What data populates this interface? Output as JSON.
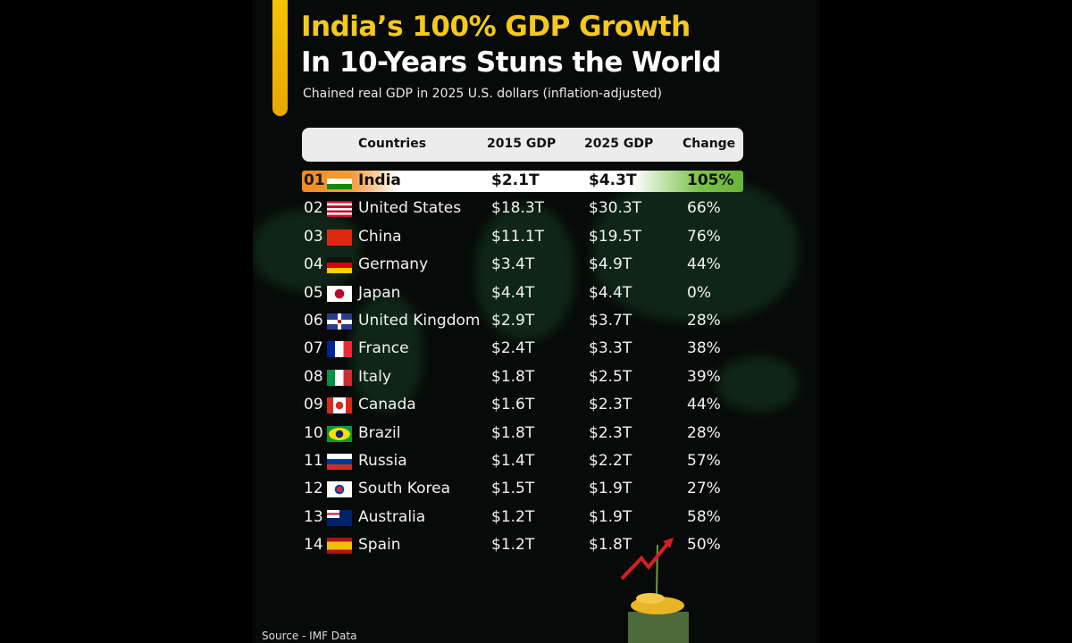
{
  "title_line1": "India’s 100% GDP Growth",
  "title_line2": "In 10-Years Stuns the World",
  "subtitle": "Chained real GDP in 2025 U.S. dollars (inflation-adjusted)",
  "source": "Source - IMF Data",
  "colors": {
    "title_yellow": "#f5c91c",
    "background": "#070a08",
    "header_bg": "#ececec"
  },
  "chart_data": {
    "type": "table",
    "columns": [
      "Countries",
      "2015 GDP",
      "2025 GDP",
      "Change"
    ],
    "rows": [
      {
        "rank": "01",
        "flag": "india-flag",
        "country": "India",
        "gdp2015": "$2.1T",
        "gdp2025": "$4.3T",
        "change": "105%",
        "highlight": true
      },
      {
        "rank": "02",
        "flag": "usa-flag",
        "country": "United States",
        "gdp2015": "$18.3T",
        "gdp2025": "$30.3T",
        "change": "66%"
      },
      {
        "rank": "03",
        "flag": "china-flag",
        "country": "China",
        "gdp2015": "$11.1T",
        "gdp2025": "$19.5T",
        "change": "76%"
      },
      {
        "rank": "04",
        "flag": "germany-flag",
        "country": "Germany",
        "gdp2015": "$3.4T",
        "gdp2025": "$4.9T",
        "change": "44%"
      },
      {
        "rank": "05",
        "flag": "japan-flag",
        "country": "Japan",
        "gdp2015": "$4.4T",
        "gdp2025": "$4.4T",
        "change": "0%"
      },
      {
        "rank": "06",
        "flag": "uk-flag",
        "country": "United Kingdom",
        "gdp2015": "$2.9T",
        "gdp2025": "$3.7T",
        "change": "28%"
      },
      {
        "rank": "07",
        "flag": "france-flag",
        "country": "France",
        "gdp2015": "$2.4T",
        "gdp2025": "$3.3T",
        "change": "38%"
      },
      {
        "rank": "08",
        "flag": "italy-flag",
        "country": "Italy",
        "gdp2015": "$1.8T",
        "gdp2025": "$2.5T",
        "change": "39%"
      },
      {
        "rank": "09",
        "flag": "canada-flag",
        "country": "Canada",
        "gdp2015": "$1.6T",
        "gdp2025": "$2.3T",
        "change": "44%"
      },
      {
        "rank": "10",
        "flag": "brazil-flag",
        "country": "Brazil",
        "gdp2015": "$1.8T",
        "gdp2025": "$2.3T",
        "change": "28%"
      },
      {
        "rank": "11",
        "flag": "russia-flag",
        "country": "Russia",
        "gdp2015": "$1.4T",
        "gdp2025": "$2.2T",
        "change": "57%"
      },
      {
        "rank": "12",
        "flag": "south-korea-flag",
        "country": "South Korea",
        "gdp2015": "$1.5T",
        "gdp2025": "$1.9T",
        "change": "27%"
      },
      {
        "rank": "13",
        "flag": "australia-flag",
        "country": "Australia",
        "gdp2015": "$1.2T",
        "gdp2025": "$1.9T",
        "change": "58%"
      },
      {
        "rank": "14",
        "flag": "spain-flag",
        "country": "Spain",
        "gdp2015": "$1.2T",
        "gdp2025": "$1.8T",
        "change": "50%"
      }
    ]
  }
}
